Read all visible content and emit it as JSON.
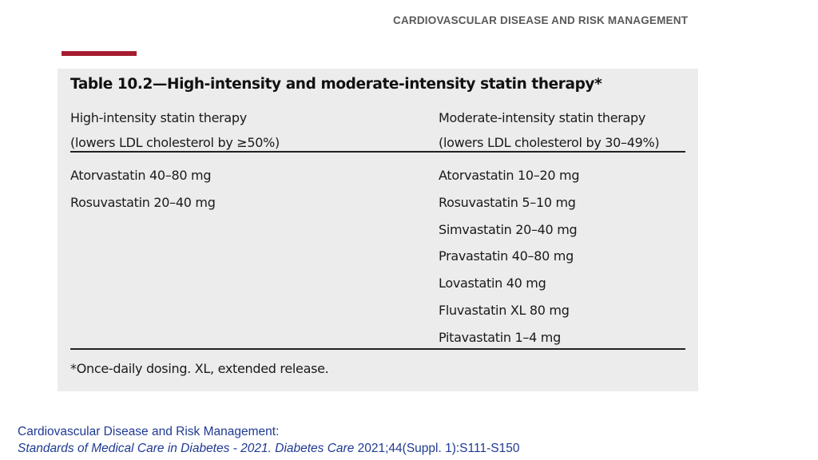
{
  "header": {
    "title": "CARDIOVASCULAR DISEASE AND RISK MANAGEMENT"
  },
  "colors": {
    "accent": "#a51c30",
    "table_background": "#ececec",
    "citation_text": "#1f3a93",
    "header_text": "#595959"
  },
  "table": {
    "title": "Table 10.2—High-intensity and moderate-intensity statin therapy*",
    "columns": [
      {
        "heading_line1": "High-intensity statin therapy",
        "heading_line2": "(lowers LDL cholesterol by ≥50%)",
        "items": [
          "Atorvastatin 40–80 mg",
          "Rosuvastatin 20–40 mg"
        ]
      },
      {
        "heading_line1": "Moderate-intensity statin therapy",
        "heading_line2": "(lowers LDL cholesterol by 30–49%)",
        "items": [
          "Atorvastatin 10–20 mg",
          "Rosuvastatin 5–10 mg",
          "Simvastatin 20–40 mg",
          "Pravastatin 40–80 mg",
          "Lovastatin 40 mg",
          "Fluvastatin XL 80 mg",
          "Pitavastatin 1–4 mg"
        ]
      }
    ],
    "footnote": "*Once-daily dosing. XL, extended release."
  },
  "citation": {
    "line1": "Cardiovascular Disease and Risk Management:",
    "line2_italic_a": "Standards of Medical Care in Diabetes - 2021.",
    "line2_italic_b": "Diabetes Care",
    "line2_plain": "2021;44(Suppl. 1):S111-S150"
  }
}
